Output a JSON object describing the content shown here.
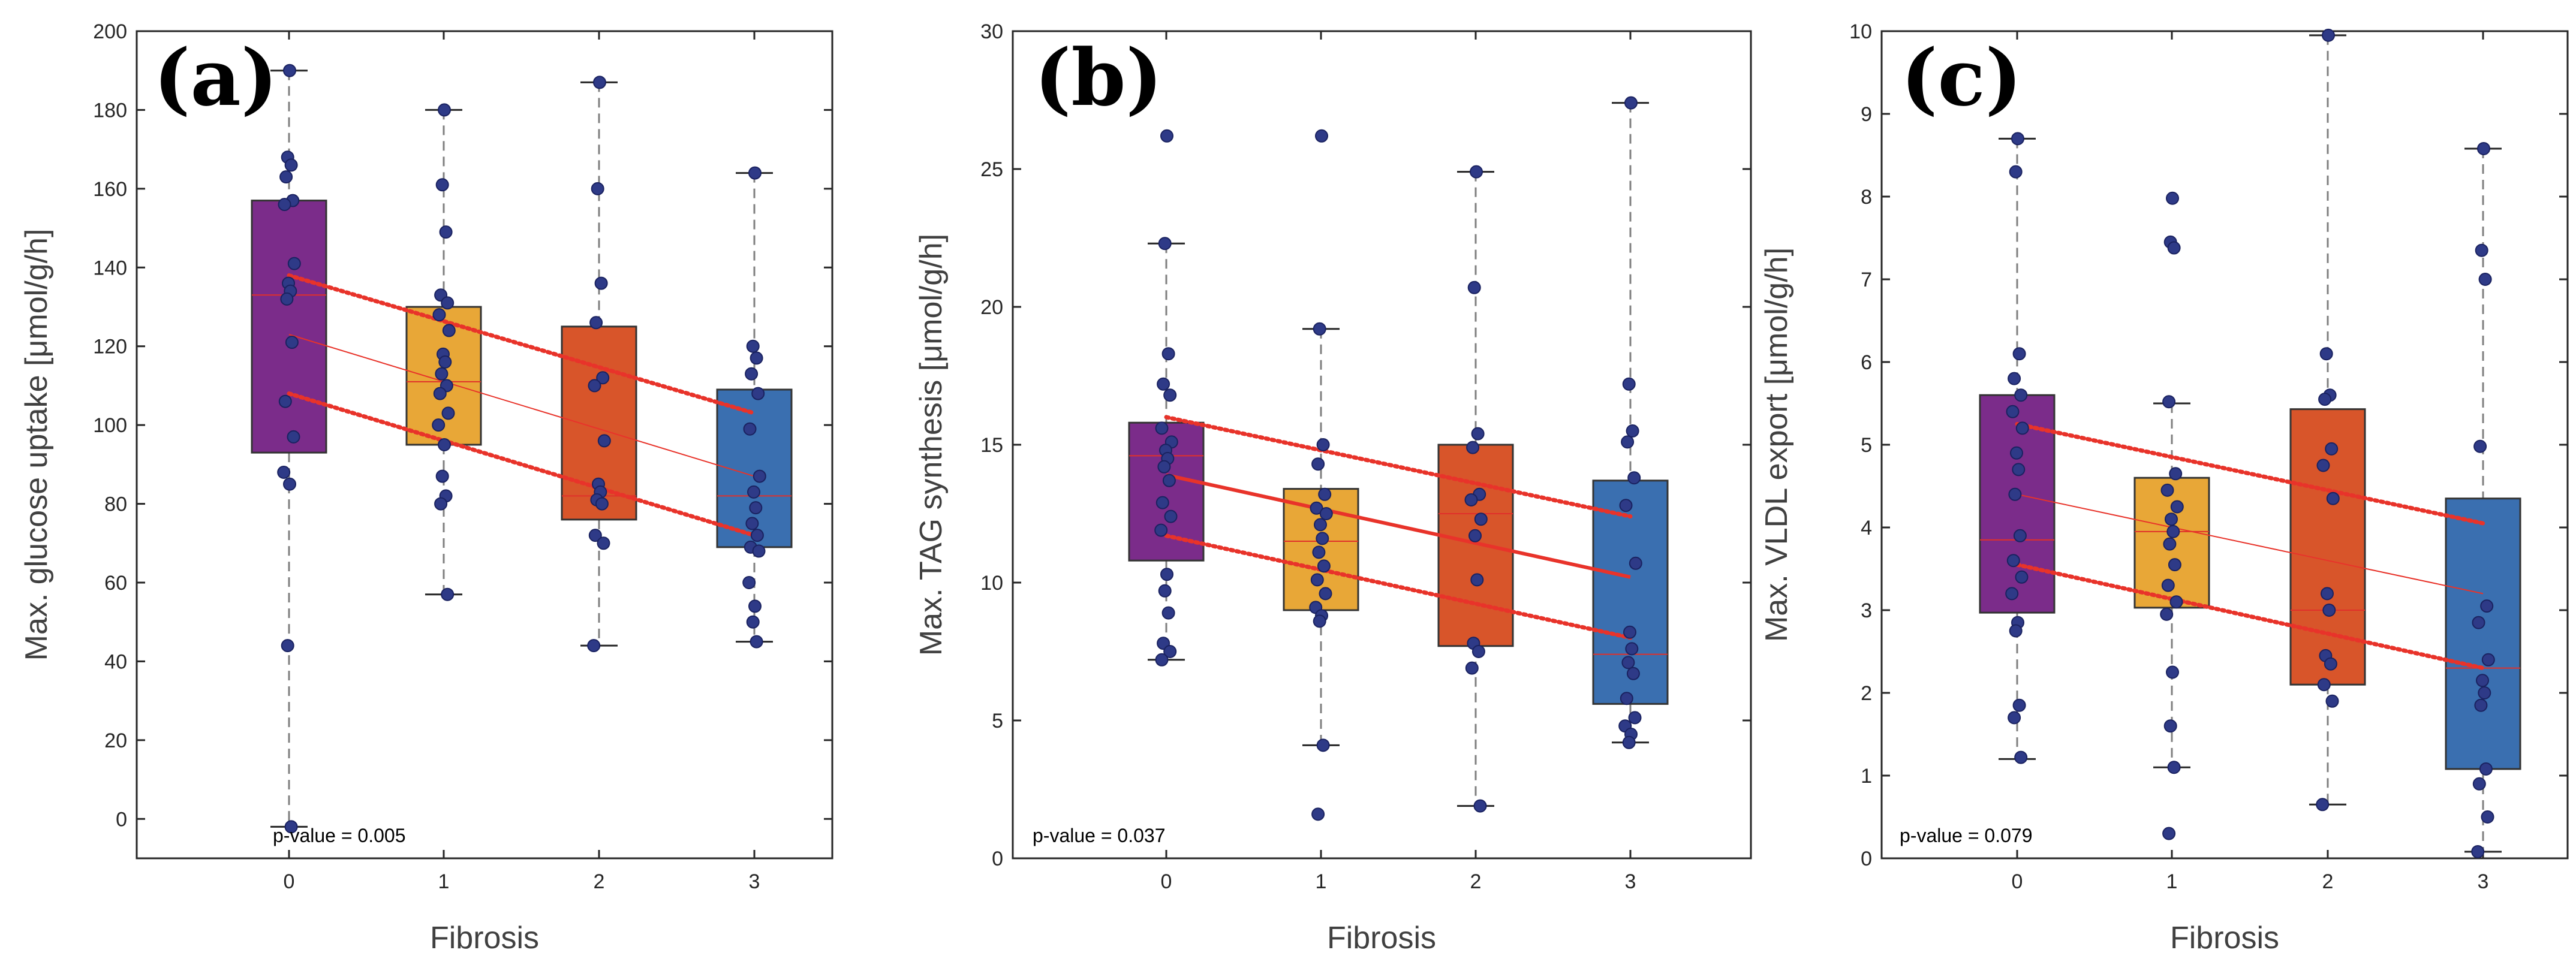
{
  "chart_data": [
    {
      "type": "boxplot",
      "panel_label": "(a)",
      "ylabel": "Max. glucose uptake [μmol/g/h]",
      "xlabel": "Fibrosis",
      "categories": [
        "0",
        "1",
        "2",
        "3"
      ],
      "ylim": [
        -10,
        200
      ],
      "yticks": [
        0,
        20,
        40,
        60,
        80,
        100,
        120,
        140,
        160,
        180,
        200
      ],
      "p_value_label": "p-value = 0.005",
      "box_colors": [
        "#7b2c8a",
        "#e8a737",
        "#d8552a",
        "#3a6fb0"
      ],
      "boxes": [
        {
          "q1": 93,
          "median": 133,
          "q3": 157,
          "whisker_low": -2,
          "whisker_high": 190
        },
        {
          "q1": 95,
          "median": 111,
          "q3": 130,
          "whisker_low": 57,
          "whisker_high": 180
        },
        {
          "q1": 76,
          "median": 82,
          "q3": 125,
          "whisker_low": 44,
          "whisker_high": 187
        },
        {
          "q1": 69,
          "median": 82,
          "q3": 109,
          "whisker_low": 45,
          "whisker_high": 164
        }
      ],
      "points": [
        [
          190,
          168,
          166,
          163,
          157,
          156,
          141,
          136,
          134,
          132,
          121,
          106,
          97,
          88,
          85,
          44,
          -2
        ],
        [
          180,
          161,
          149,
          133,
          131,
          128,
          124,
          118,
          116,
          113,
          110,
          108,
          103,
          100,
          95,
          87,
          82,
          80,
          57
        ],
        [
          187,
          160,
          136,
          126,
          112,
          110,
          96,
          85,
          83,
          81,
          80,
          72,
          70,
          44
        ],
        [
          164,
          120,
          117,
          113,
          108,
          99,
          87,
          83,
          79,
          75,
          72,
          69,
          68,
          60,
          54,
          50,
          45
        ]
      ],
      "regression": {
        "x": [
          0,
          3
        ],
        "y": [
          123,
          87
        ],
        "ci_upper": [
          138,
          103
        ],
        "ci_lower": [
          108,
          72
        ]
      }
    },
    {
      "type": "boxplot",
      "panel_label": "(b)",
      "ylabel": "Max. TAG synthesis [μmol/g/h]",
      "xlabel": "Fibrosis",
      "categories": [
        "0",
        "1",
        "2",
        "3"
      ],
      "ylim": [
        0,
        30
      ],
      "yticks": [
        0,
        5,
        10,
        15,
        20,
        25,
        30
      ],
      "p_value_label": "p-value = 0.037",
      "box_colors": [
        "#7b2c8a",
        "#e8a737",
        "#d8552a",
        "#3a6fb0"
      ],
      "boxes": [
        {
          "q1": 10.8,
          "median": 14.6,
          "q3": 15.8,
          "whisker_low": 7.2,
          "whisker_high": 22.3
        },
        {
          "q1": 9.0,
          "median": 11.5,
          "q3": 13.4,
          "whisker_low": 4.1,
          "whisker_high": 19.2
        },
        {
          "q1": 7.7,
          "median": 12.5,
          "q3": 15.0,
          "whisker_low": 1.9,
          "whisker_high": 24.9
        },
        {
          "q1": 5.6,
          "median": 7.4,
          "q3": 13.7,
          "whisker_low": 4.2,
          "whisker_high": 27.4
        }
      ],
      "points": [
        [
          26.2,
          22.3,
          18.3,
          17.2,
          16.8,
          15.6,
          15.1,
          14.8,
          14.5,
          14.2,
          13.7,
          12.9,
          12.4,
          11.9,
          10.3,
          9.7,
          8.9,
          7.8,
          7.5,
          7.2
        ],
        [
          26.2,
          19.2,
          15.0,
          14.3,
          13.2,
          12.7,
          12.5,
          12.1,
          11.6,
          11.1,
          10.6,
          10.1,
          9.6,
          9.1,
          8.8,
          8.6,
          4.1,
          1.6
        ],
        [
          24.9,
          20.7,
          15.4,
          14.9,
          13.2,
          13.0,
          12.3,
          11.7,
          10.1,
          7.8,
          7.5,
          6.9,
          1.9
        ],
        [
          27.4,
          17.2,
          15.5,
          15.1,
          13.8,
          12.8,
          10.7,
          8.2,
          7.6,
          7.1,
          6.7,
          5.8,
          5.1,
          4.8,
          4.5,
          4.2
        ]
      ],
      "regression": {
        "x": [
          0,
          3
        ],
        "y": [
          13.9,
          10.2
        ],
        "ci_upper": [
          16.0,
          12.4
        ],
        "ci_lower": [
          11.7,
          8.0
        ]
      }
    },
    {
      "type": "boxplot",
      "panel_label": "(c)",
      "ylabel": "Max. VLDL export [μmol/g/h]",
      "xlabel": "Fibrosis",
      "categories": [
        "0",
        "1",
        "2",
        "3"
      ],
      "ylim": [
        0,
        10
      ],
      "yticks": [
        0,
        1,
        2,
        3,
        4,
        5,
        6,
        7,
        8,
        9,
        10
      ],
      "p_value_label": "p-value = 0.079",
      "box_colors": [
        "#7b2c8a",
        "#e8a737",
        "#d8552a",
        "#3a6fb0"
      ],
      "boxes": [
        {
          "q1": 2.97,
          "median": 3.85,
          "q3": 5.6,
          "whisker_low": 1.2,
          "whisker_high": 8.7
        },
        {
          "q1": 3.03,
          "median": 3.95,
          "q3": 4.6,
          "whisker_low": 1.1,
          "whisker_high": 5.5
        },
        {
          "q1": 2.1,
          "median": 3.0,
          "q3": 5.43,
          "whisker_low": 0.65,
          "whisker_high": 9.95
        },
        {
          "q1": 1.08,
          "median": 2.3,
          "q3": 4.35,
          "whisker_low": 0.08,
          "whisker_high": 8.58
        }
      ],
      "points": [
        [
          8.7,
          8.3,
          6.1,
          5.8,
          5.6,
          5.4,
          5.2,
          4.9,
          4.7,
          4.4,
          3.9,
          3.6,
          3.4,
          3.2,
          2.85,
          2.75,
          1.85,
          1.7,
          1.22
        ],
        [
          7.98,
          7.45,
          7.38,
          5.52,
          4.65,
          4.45,
          4.25,
          4.1,
          3.95,
          3.8,
          3.55,
          3.3,
          3.1,
          2.95,
          2.25,
          1.6,
          1.1,
          0.3
        ],
        [
          9.95,
          6.1,
          5.6,
          5.55,
          4.95,
          4.75,
          4.35,
          3.2,
          3.0,
          2.45,
          2.35,
          2.1,
          1.9,
          0.65
        ],
        [
          8.58,
          7.35,
          7.0,
          4.98,
          3.05,
          2.85,
          2.4,
          2.15,
          2.0,
          1.85,
          1.08,
          0.9,
          0.5,
          0.08
        ]
      ],
      "regression": {
        "x": [
          0,
          3
        ],
        "y": [
          4.4,
          3.2
        ],
        "ci_upper": [
          5.25,
          4.05
        ],
        "ci_lower": [
          3.55,
          2.3
        ]
      }
    }
  ]
}
